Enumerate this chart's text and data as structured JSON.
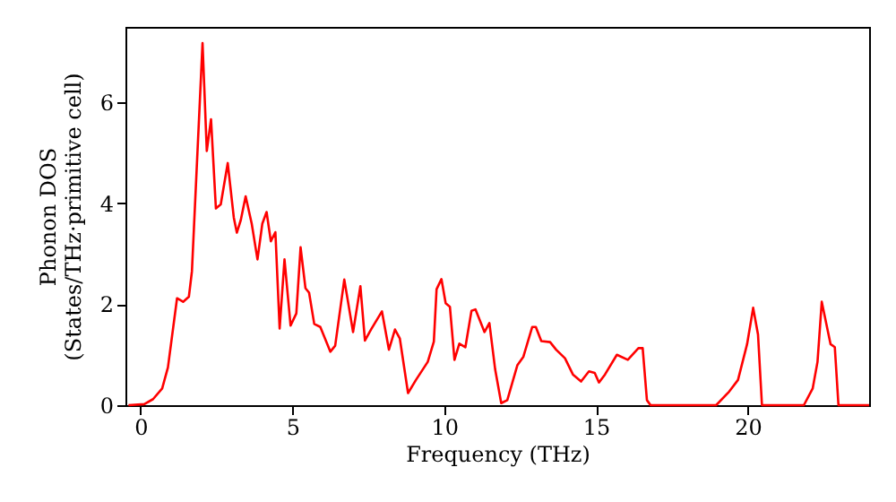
{
  "chart_data": {
    "type": "line",
    "xlabel": "Frequency (THz)",
    "ylabel": "Phonon DOS\n(States/THz·primitive cell)",
    "xlim": [
      -0.5,
      24
    ],
    "ylim": [
      0,
      7.5
    ],
    "xticks": [
      0,
      5,
      10,
      15,
      20
    ],
    "yticks": [
      0,
      2,
      4,
      6
    ],
    "grid": false,
    "marker": "none",
    "line_style": "solid",
    "series": [
      {
        "color": "#ff0000",
        "x": [
          -0.4,
          0.12,
          0.41,
          0.71,
          0.9,
          1.2,
          1.4,
          1.59,
          1.69,
          2.04,
          2.18,
          2.32,
          2.48,
          2.64,
          2.87,
          3.07,
          3.17,
          3.3,
          3.46,
          3.66,
          3.85,
          4.01,
          4.15,
          4.29,
          4.44,
          4.58,
          4.74,
          4.94,
          5.13,
          5.27,
          5.43,
          5.55,
          5.72,
          5.92,
          6.25,
          6.41,
          6.71,
          7.0,
          7.24,
          7.39,
          7.59,
          7.95,
          8.18,
          8.38,
          8.54,
          8.81,
          9.07,
          9.46,
          9.66,
          9.75,
          9.91,
          10.05,
          10.19,
          10.34,
          10.5,
          10.7,
          10.9,
          11.03,
          11.33,
          11.49,
          11.68,
          11.88,
          12.08,
          12.41,
          12.61,
          12.9,
          13.02,
          13.2,
          13.49,
          13.69,
          13.98,
          14.24,
          14.51,
          14.77,
          14.96,
          15.1,
          15.3,
          15.69,
          16.05,
          16.4,
          16.54,
          16.68,
          16.8,
          18.96,
          19.39,
          19.68,
          19.98,
          20.18,
          20.34,
          20.47,
          21.85,
          22.14,
          22.3,
          22.44,
          22.73,
          22.87,
          22.99,
          24.0
        ],
        "values": [
          0,
          0.02,
          0.12,
          0.33,
          0.75,
          2.12,
          2.05,
          2.15,
          2.65,
          7.18,
          5.04,
          5.67,
          3.9,
          3.98,
          4.8,
          3.72,
          3.42,
          3.67,
          4.14,
          3.6,
          2.89,
          3.6,
          3.83,
          3.25,
          3.43,
          1.52,
          2.89,
          1.58,
          1.82,
          3.13,
          2.32,
          2.23,
          1.61,
          1.55,
          1.06,
          1.18,
          2.49,
          1.45,
          2.36,
          1.28,
          1.5,
          1.86,
          1.1,
          1.5,
          1.32,
          0.24,
          0.5,
          0.86,
          1.26,
          2.3,
          2.5,
          2.02,
          1.95,
          0.9,
          1.22,
          1.15,
          1.87,
          1.9,
          1.45,
          1.63,
          0.71,
          0.04,
          0.1,
          0.79,
          0.96,
          1.55,
          1.55,
          1.27,
          1.25,
          1.1,
          0.93,
          0.61,
          0.47,
          0.67,
          0.64,
          0.45,
          0.61,
          1.0,
          0.9,
          1.13,
          1.13,
          0.1,
          0,
          0,
          0.27,
          0.5,
          1.21,
          1.93,
          1.4,
          0,
          0,
          0.33,
          0.86,
          2.05,
          1.21,
          1.15,
          0,
          0
        ]
      }
    ]
  }
}
